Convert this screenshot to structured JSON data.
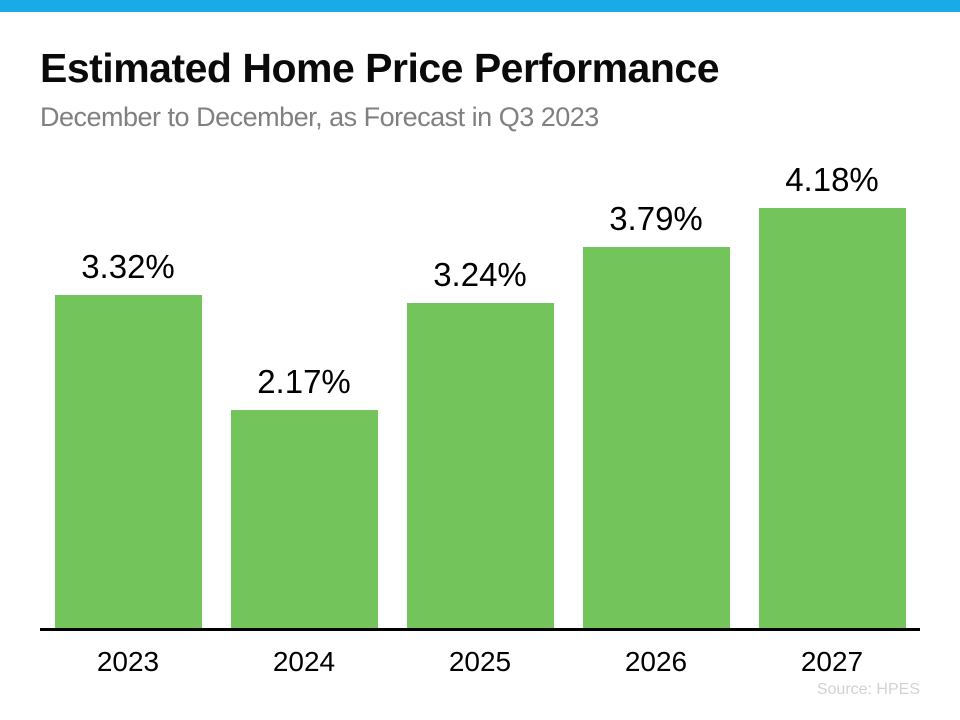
{
  "page": {
    "title": "Estimated Home Price Performance",
    "subtitle": "December to December, as Forecast in Q3 2023",
    "source": "Source: HPES"
  },
  "chart_data": {
    "type": "bar",
    "title": "Estimated Home Price Performance",
    "subtitle": "December to December, as Forecast in Q3 2023",
    "categories": [
      "2023",
      "2024",
      "2025",
      "2026",
      "2027"
    ],
    "values": [
      3.32,
      2.17,
      3.24,
      3.79,
      4.18
    ],
    "value_labels": [
      "3.32%",
      "2.17%",
      "3.24%",
      "3.79%",
      "4.18%"
    ],
    "xlabel": "",
    "ylabel": "",
    "ylim": [
      0,
      4.66
    ],
    "grid": false,
    "legend": false,
    "bar_color": "#73C45A",
    "accent_color": "#1AAAE8",
    "axis_color": "#000000",
    "source": "Source: HPES"
  }
}
